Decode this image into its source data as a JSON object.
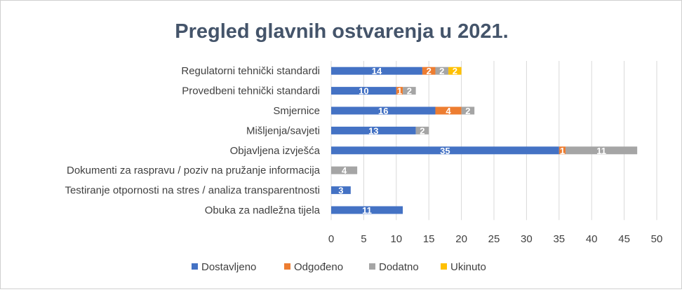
{
  "chart_data": {
    "type": "bar",
    "orientation": "horizontal",
    "stacked": true,
    "title": "Pregled glavnih ostvarenja u 2021.",
    "categories": [
      "Regulatorni tehnički standardi",
      "Provedbeni tehnički standardi",
      "Smjernice",
      "Mišljenja/savjeti",
      "Objavljena izvješća",
      "Dokumenti za raspravu / poziv na pružanje informacija",
      "Testiranje otpornosti na stres / analiza transparentnosti",
      "Obuka za nadležna tijela"
    ],
    "series": [
      {
        "name": "Dostavljeno",
        "color": "#4472c4",
        "values": [
          14,
          10,
          16,
          13,
          35,
          0,
          3,
          11
        ]
      },
      {
        "name": "Odgođeno",
        "color": "#ed7d31",
        "values": [
          2,
          1,
          4,
          0,
          1,
          0,
          0,
          0
        ]
      },
      {
        "name": "Dodatno",
        "color": "#a5a5a5",
        "values": [
          2,
          2,
          2,
          2,
          11,
          4,
          0,
          0
        ]
      },
      {
        "name": "Ukinuto",
        "color": "#ffc000",
        "values": [
          2,
          0,
          0,
          0,
          0,
          0,
          0,
          0
        ]
      }
    ],
    "xlim": [
      0,
      50
    ],
    "x_ticks": [
      0,
      5,
      10,
      15,
      20,
      25,
      30,
      35,
      40,
      45,
      50
    ],
    "grid": true,
    "legend": "bottom"
  }
}
